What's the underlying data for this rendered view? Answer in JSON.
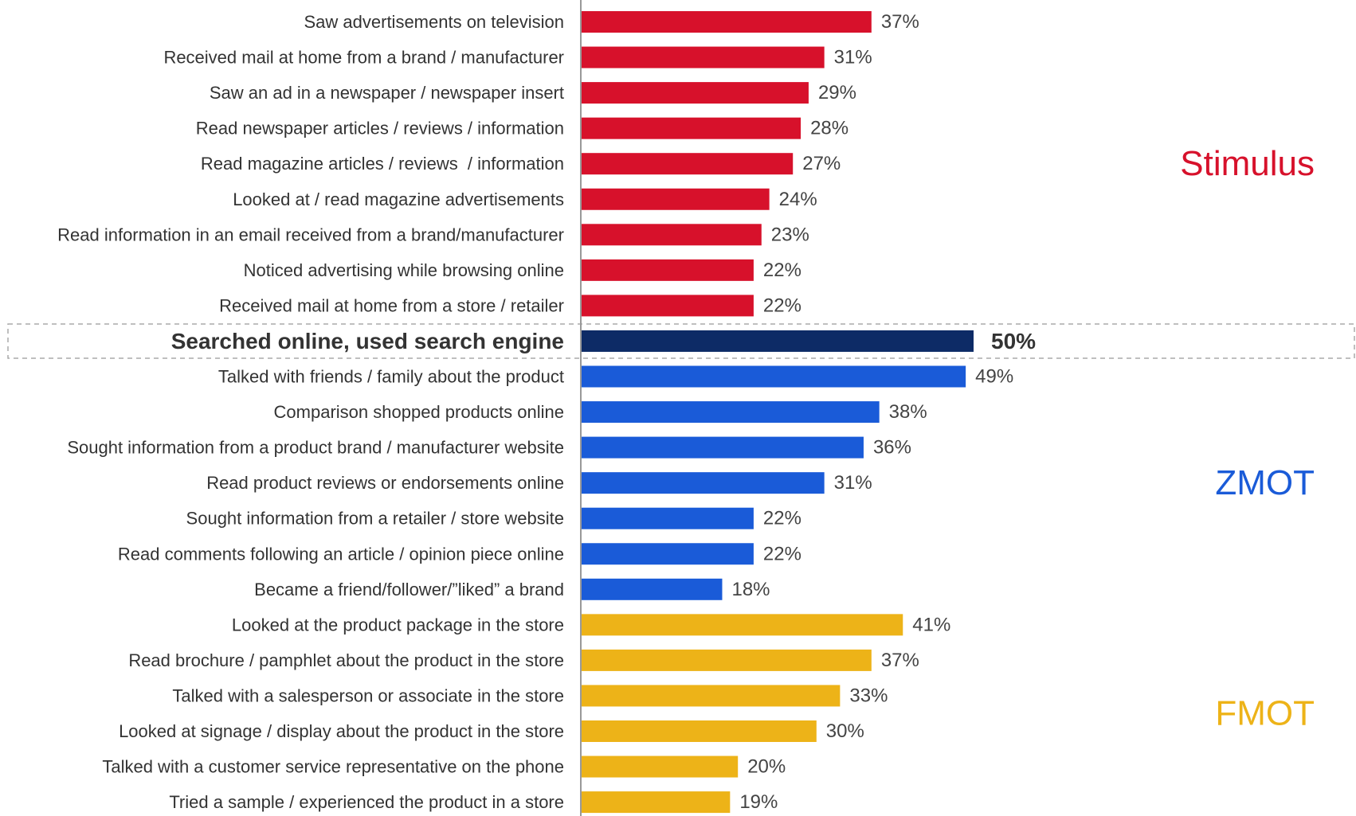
{
  "chart_data": {
    "type": "bar",
    "orientation": "horizontal",
    "value_unit": "%",
    "categories": [
      "Saw advertisements on television",
      "Received mail at home from a brand / manufacturer",
      "Saw an ad in a newspaper / newspaper insert",
      "Read newspaper articles / reviews / information",
      "Read magazine articles / reviews  / information",
      "Looked at / read magazine advertisements",
      "Read information in an email received from a brand/manufacturer",
      "Noticed advertising while browsing online",
      "Received mail at home from a store / retailer",
      "Searched online, used search engine",
      "Talked with friends / family about the product",
      "Comparison shopped products online",
      "Sought information from a product brand / manufacturer website",
      "Read product reviews or endorsements online",
      "Sought information from a retailer / store website",
      "Read comments following an article / opinion piece online",
      "Became a friend/follower/”liked” a brand",
      "Looked at the product package in the store",
      "Read brochure / pamphlet about the product in the store",
      "Talked with a salesperson or associate in the store",
      "Looked at signage / display about the product in the store",
      "Talked with a customer service representative on the phone",
      "Tried a sample / experienced the product in a store"
    ],
    "values": [
      37,
      31,
      29,
      28,
      27,
      24,
      23,
      22,
      22,
      50,
      49,
      38,
      36,
      31,
      22,
      22,
      18,
      41,
      37,
      33,
      30,
      20,
      19
    ],
    "value_labels": [
      "37%",
      "31%",
      "29%",
      "28%",
      "27%",
      "24%",
      "23%",
      "22%",
      "22%",
      "50%",
      "49%",
      "38%",
      "36%",
      "31%",
      "22%",
      "22%",
      "18%",
      "41%",
      "37%",
      "33%",
      "30%",
      "20%",
      "19%"
    ],
    "bar_group": [
      "Stimulus",
      "Stimulus",
      "Stimulus",
      "Stimulus",
      "Stimulus",
      "Stimulus",
      "Stimulus",
      "Stimulus",
      "Stimulus",
      "highlight",
      "ZMOT",
      "ZMOT",
      "ZMOT",
      "ZMOT",
      "ZMOT",
      "ZMOT",
      "ZMOT",
      "FMOT",
      "FMOT",
      "FMOT",
      "FMOT",
      "FMOT",
      "FMOT"
    ],
    "highlighted_index": 9,
    "xlim": [
      0,
      50
    ],
    "groups": [
      {
        "name": "Stimulus",
        "color": "#d7112b",
        "first": 0,
        "last": 8
      },
      {
        "name": "ZMOT",
        "color": "#1a5bd8",
        "first": 10,
        "last": 16
      },
      {
        "name": "FMOT",
        "color": "#edb318",
        "first": 17,
        "last": 22
      }
    ],
    "highlight_color": "#0d2b66",
    "title": "",
    "xlabel": "",
    "ylabel": ""
  }
}
